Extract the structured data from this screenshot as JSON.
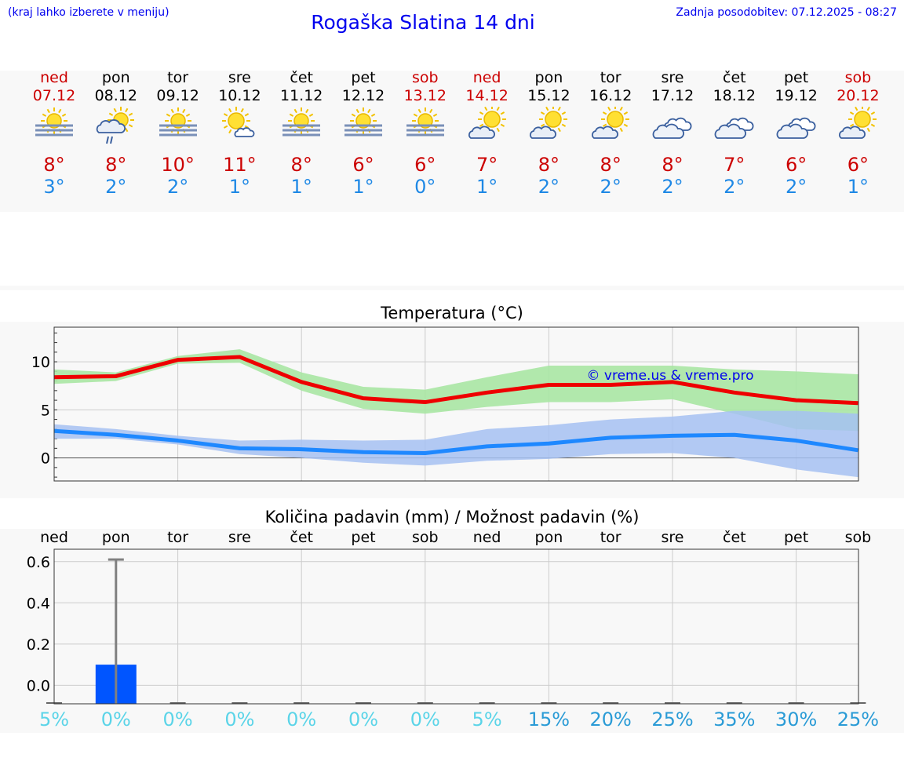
{
  "header": {
    "left_note": "(kraj lahko izberete v meniju)",
    "title": "Rogaška Slatina 14 dni",
    "updated": "Zadnja posodobitev: 07.12.2025 - 08:27"
  },
  "days": [
    {
      "name": "ned",
      "date": "07.12",
      "weekend": true,
      "icon": "sun-fog-icon",
      "max": "8°",
      "min": "3°",
      "precip_label": "5%"
    },
    {
      "name": "pon",
      "date": "08.12",
      "weekend": false,
      "icon": "sun-cloud-rain-icon",
      "max": "8°",
      "min": "2°",
      "precip_label": "0%"
    },
    {
      "name": "tor",
      "date": "09.12",
      "weekend": false,
      "icon": "sun-fog-icon",
      "max": "10°",
      "min": "2°",
      "precip_label": "0%"
    },
    {
      "name": "sre",
      "date": "10.12",
      "weekend": false,
      "icon": "sun-small-cloud-icon",
      "max": "11°",
      "min": "1°",
      "precip_label": "0%"
    },
    {
      "name": "čet",
      "date": "11.12",
      "weekend": false,
      "icon": "sun-fog-icon",
      "max": "8°",
      "min": "1°",
      "precip_label": "0%"
    },
    {
      "name": "pet",
      "date": "12.12",
      "weekend": false,
      "icon": "sun-fog-icon",
      "max": "6°",
      "min": "1°",
      "precip_label": "0%"
    },
    {
      "name": "sob",
      "date": "13.12",
      "weekend": true,
      "icon": "sun-fog-icon",
      "max": "6°",
      "min": "0°",
      "precip_label": "0%"
    },
    {
      "name": "ned",
      "date": "14.12",
      "weekend": true,
      "icon": "sun-cloud-icon",
      "max": "7°",
      "min": "1°",
      "precip_label": "5%"
    },
    {
      "name": "pon",
      "date": "15.12",
      "weekend": false,
      "icon": "sun-cloud-icon",
      "max": "8°",
      "min": "2°",
      "precip_label": "15%"
    },
    {
      "name": "tor",
      "date": "16.12",
      "weekend": false,
      "icon": "sun-cloud-icon",
      "max": "8°",
      "min": "2°",
      "precip_label": "20%"
    },
    {
      "name": "sre",
      "date": "17.12",
      "weekend": false,
      "icon": "clouds-icon",
      "max": "8°",
      "min": "2°",
      "precip_label": "25%"
    },
    {
      "name": "čet",
      "date": "18.12",
      "weekend": false,
      "icon": "clouds-icon",
      "max": "7°",
      "min": "2°",
      "precip_label": "35%"
    },
    {
      "name": "pet",
      "date": "19.12",
      "weekend": false,
      "icon": "clouds-icon",
      "max": "6°",
      "min": "2°",
      "precip_label": "30%"
    },
    {
      "name": "sob",
      "date": "20.12",
      "weekend": true,
      "icon": "sun-cloud-icon",
      "max": "6°",
      "min": "1°",
      "precip_label": "25%"
    }
  ],
  "colors": {
    "max_line": "#ee0000",
    "max_band": "#a8e6a3",
    "min_line": "#1e88ff",
    "min_band": "#a6c1f2",
    "precip_bar": "#0055ff",
    "error_bar": "#808080",
    "pct_low": "#5bd4e8",
    "pct_high": "#2a9bd6"
  },
  "chart_data": [
    {
      "type": "line",
      "title": "Temperatura (°C)",
      "watermark": "© vreme.us & vreme.pro",
      "ylim": [
        -2.4,
        13.6
      ],
      "yticks": [
        0,
        5,
        10
      ],
      "x_count": 14,
      "series": [
        {
          "name": "max",
          "values": [
            8.4,
            8.5,
            10.2,
            10.5,
            7.9,
            6.2,
            5.8,
            6.8,
            7.6,
            7.6,
            7.9,
            6.8,
            6.0,
            5.7
          ],
          "band_low": [
            7.7,
            8.0,
            9.8,
            9.9,
            7.0,
            5.1,
            4.6,
            5.3,
            5.8,
            5.8,
            6.1,
            4.6,
            3.0,
            2.8
          ],
          "band_high": [
            9.2,
            8.9,
            10.6,
            11.3,
            8.9,
            7.4,
            7.1,
            8.4,
            9.6,
            9.6,
            9.6,
            9.2,
            9.0,
            8.7
          ]
        },
        {
          "name": "min",
          "values": [
            2.8,
            2.4,
            1.8,
            1.0,
            0.9,
            0.6,
            0.5,
            1.2,
            1.5,
            2.1,
            2.3,
            2.4,
            1.8,
            0.8
          ],
          "band_low": [
            2.0,
            2.0,
            1.4,
            0.4,
            0.0,
            -0.5,
            -0.8,
            -0.3,
            -0.1,
            0.4,
            0.5,
            0.0,
            -1.2,
            -2.0
          ],
          "band_high": [
            3.5,
            3.0,
            2.3,
            1.8,
            1.9,
            1.8,
            1.9,
            3.0,
            3.4,
            4.0,
            4.3,
            4.9,
            4.9,
            4.6
          ]
        }
      ]
    },
    {
      "type": "bar",
      "title": "Količina padavin (mm) / Možnost padavin (%)",
      "ylim": [
        -0.09,
        0.66
      ],
      "yticks": [
        "0.0",
        "0.2",
        "0.4",
        "0.6"
      ],
      "ytick_values": [
        0.0,
        0.2,
        0.4,
        0.6
      ],
      "categories": [
        "ned",
        "pon",
        "tor",
        "sre",
        "čet",
        "pet",
        "sob",
        "ned",
        "pon",
        "tor",
        "sre",
        "čet",
        "pet",
        "sob"
      ],
      "values": [
        0,
        0.1,
        0,
        0,
        0,
        0,
        0,
        0,
        0,
        0,
        0,
        0,
        0,
        0
      ],
      "error_high": [
        0,
        0.61,
        0,
        0,
        0,
        0,
        0,
        0,
        0,
        0,
        0,
        0,
        0,
        0
      ],
      "probability_pct": [
        5,
        0,
        0,
        0,
        0,
        0,
        0,
        5,
        15,
        20,
        25,
        35,
        30,
        25
      ]
    }
  ]
}
